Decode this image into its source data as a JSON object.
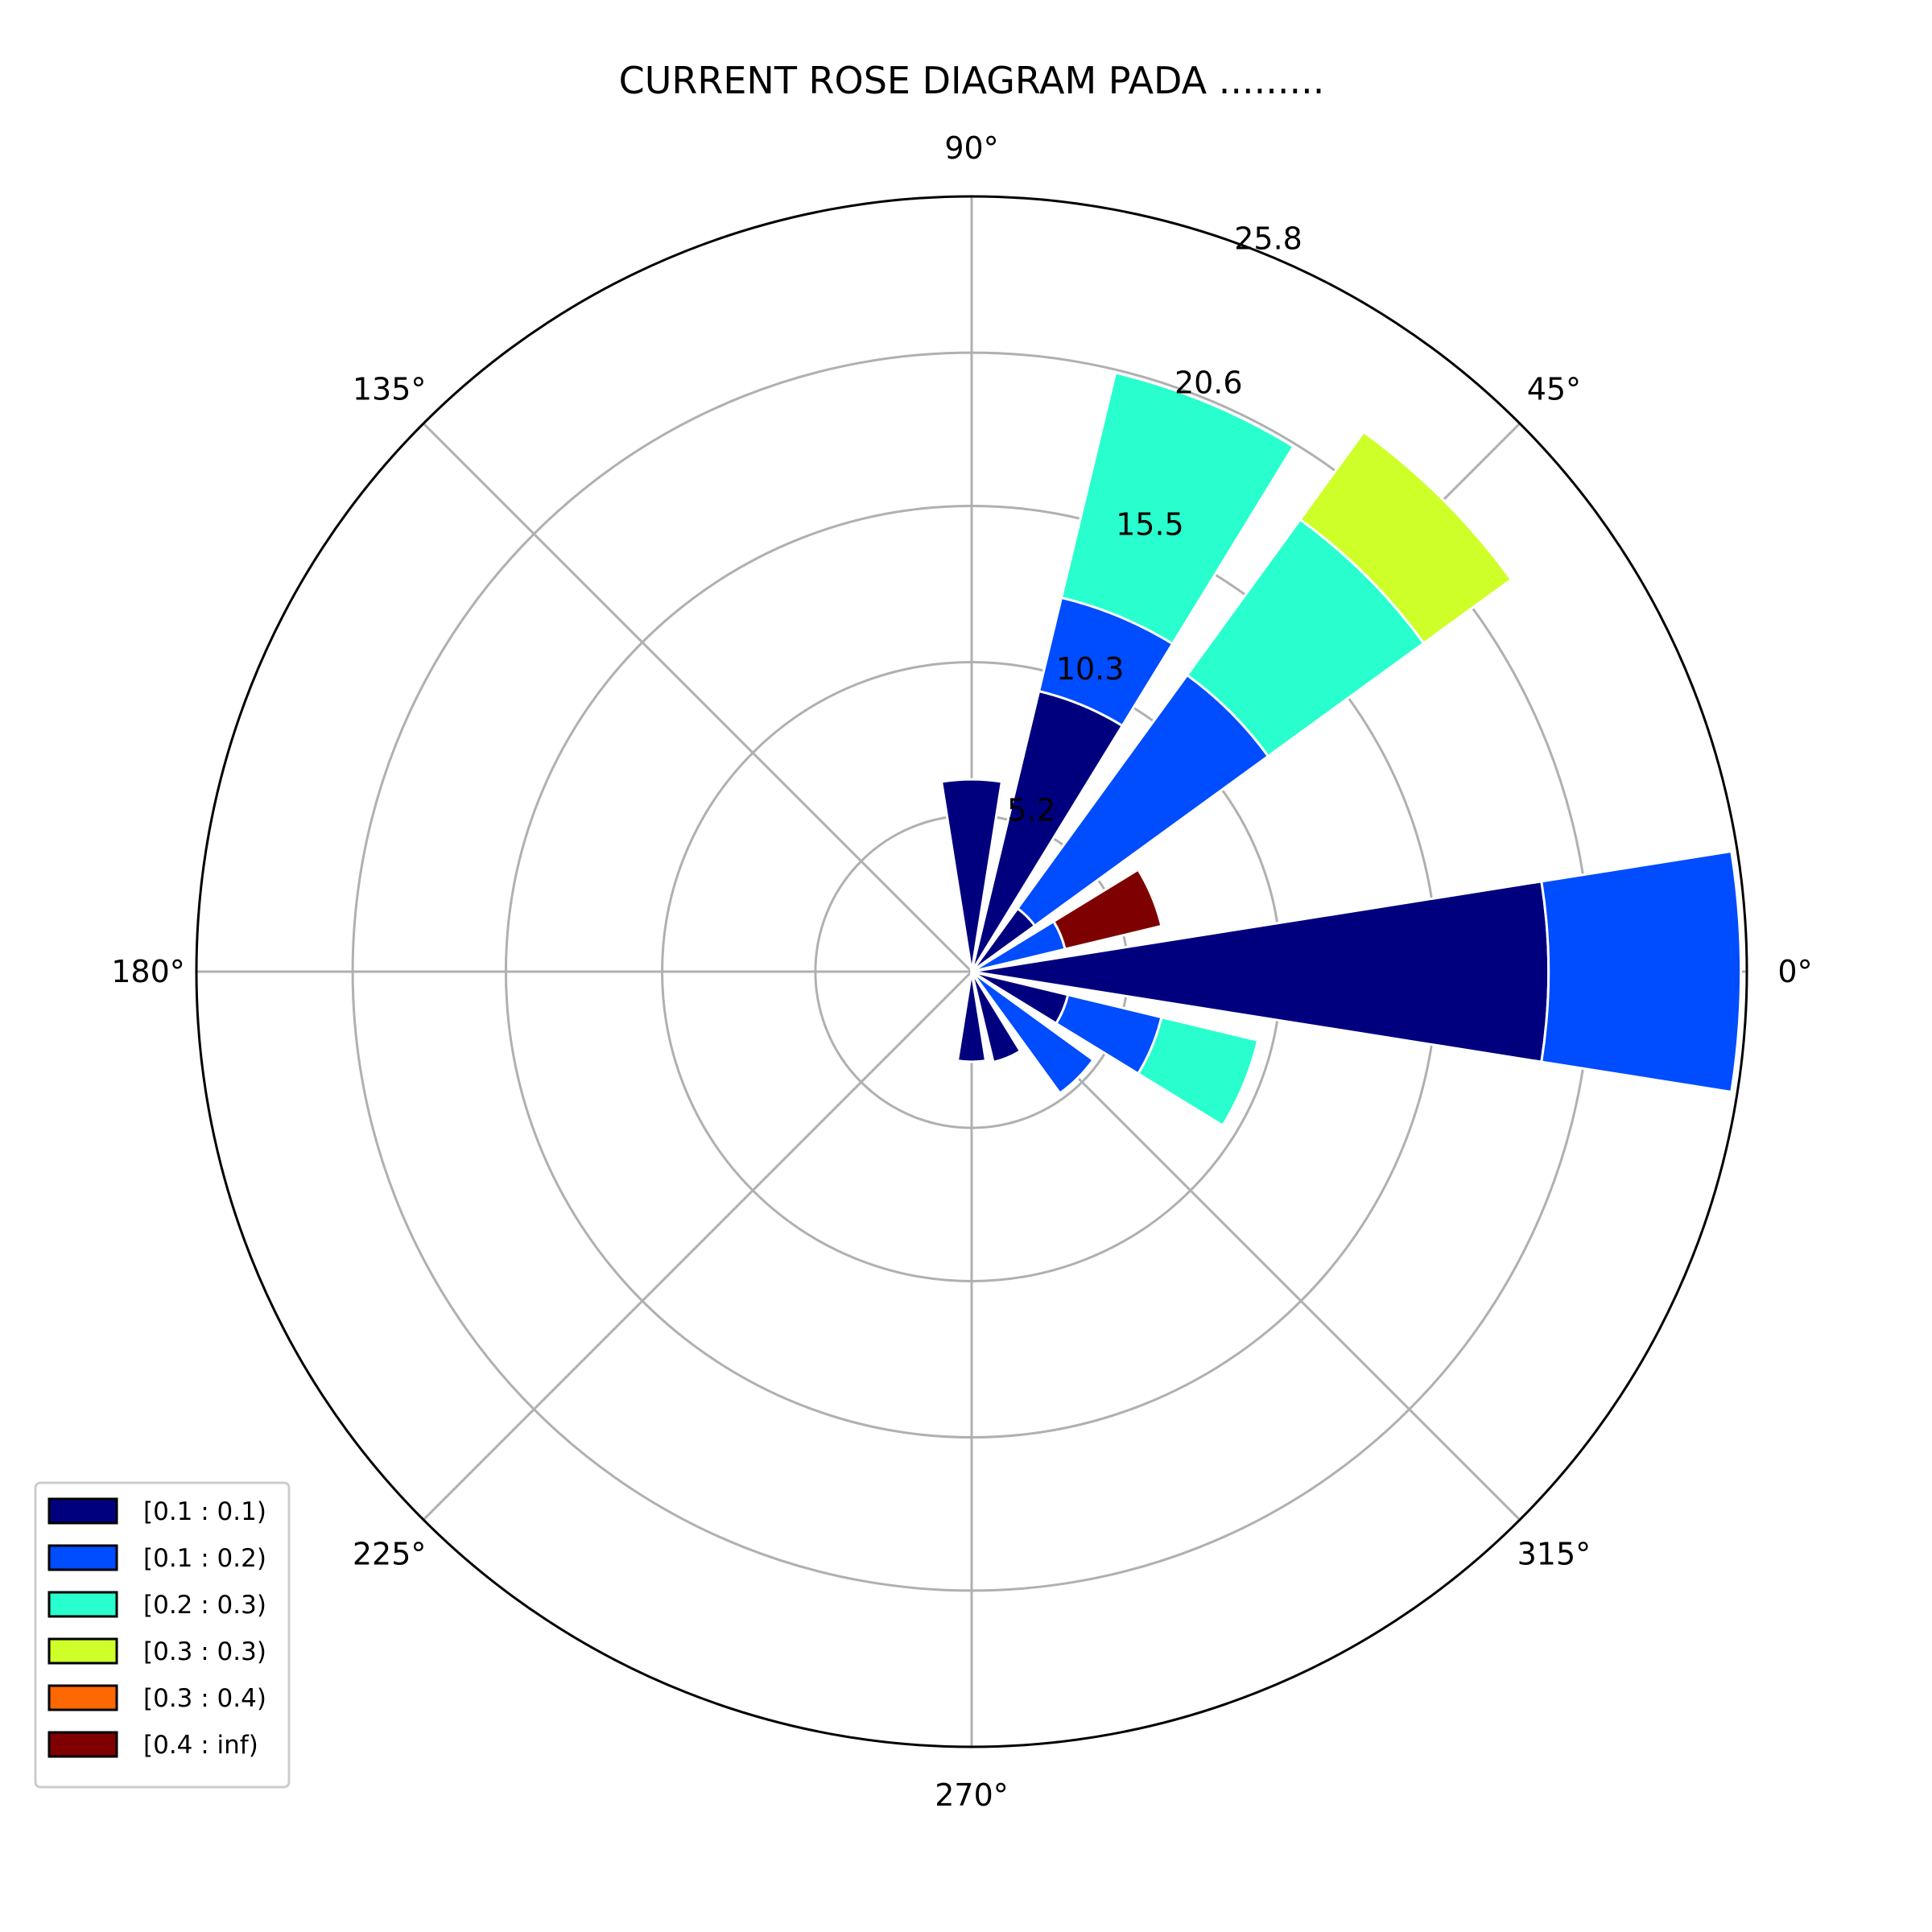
{
  "chart_data": {
    "type": "bar",
    "subtype": "polar-stacked",
    "title": "CURRENT ROSE DIAGRAM PADA .........",
    "angle_tick_labels": [
      "0°",
      "45°",
      "90°",
      "135°",
      "180°",
      "225°",
      "270°",
      "315°"
    ],
    "angle_ticks_deg": [
      0,
      45,
      90,
      135,
      180,
      225,
      270,
      315
    ],
    "radial_tick_labels": [
      "5.2",
      "10.3",
      "15.5",
      "20.6",
      "25.8"
    ],
    "radial_ticks": [
      5.2,
      10.3,
      15.5,
      20.6,
      25.8
    ],
    "rlim": [
      0,
      25.8
    ],
    "grid": true,
    "legend_position": "lower-left",
    "sector_width_deg": 18,
    "sectors_deg": [
      0,
      22.5,
      45,
      67.5,
      90,
      270,
      292.5,
      315,
      337.5
    ],
    "series": [
      {
        "name": "[0.1 : 0.1)",
        "color": "#00007f",
        "values": [
          19.2,
          0.0,
          2.6,
          9.6,
          6.4,
          3.0,
          3.1,
          0.0,
          3.3
        ]
      },
      {
        "name": "[0.1 : 0.2)",
        "color": "#004cff",
        "values": [
          6.4,
          3.2,
          9.6,
          3.2,
          0.0,
          0.0,
          0.0,
          5.0,
          3.2
        ]
      },
      {
        "name": "[0.2 : 0.3)",
        "color": "#29ffce",
        "values": [
          0.0,
          0.0,
          6.4,
          7.7,
          0.0,
          0.0,
          0.0,
          0.0,
          3.3
        ]
      },
      {
        "name": "[0.3 : 0.3)",
        "color": "#ceff29",
        "values": [
          0.0,
          0.0,
          3.6,
          0.0,
          0.0,
          0.0,
          0.0,
          0.0,
          0.0
        ]
      },
      {
        "name": "[0.3 : 0.4)",
        "color": "#ff6800",
        "values": [
          0.0,
          0.0,
          0.0,
          0.0,
          0.0,
          0.0,
          0.0,
          0.0,
          0.0
        ]
      },
      {
        "name": "[0.4 : inf)",
        "color": "#7f0000",
        "values": [
          0.0,
          3.3,
          0.0,
          0.0,
          0.0,
          0.0,
          0.0,
          0.0,
          0.0
        ]
      }
    ]
  }
}
